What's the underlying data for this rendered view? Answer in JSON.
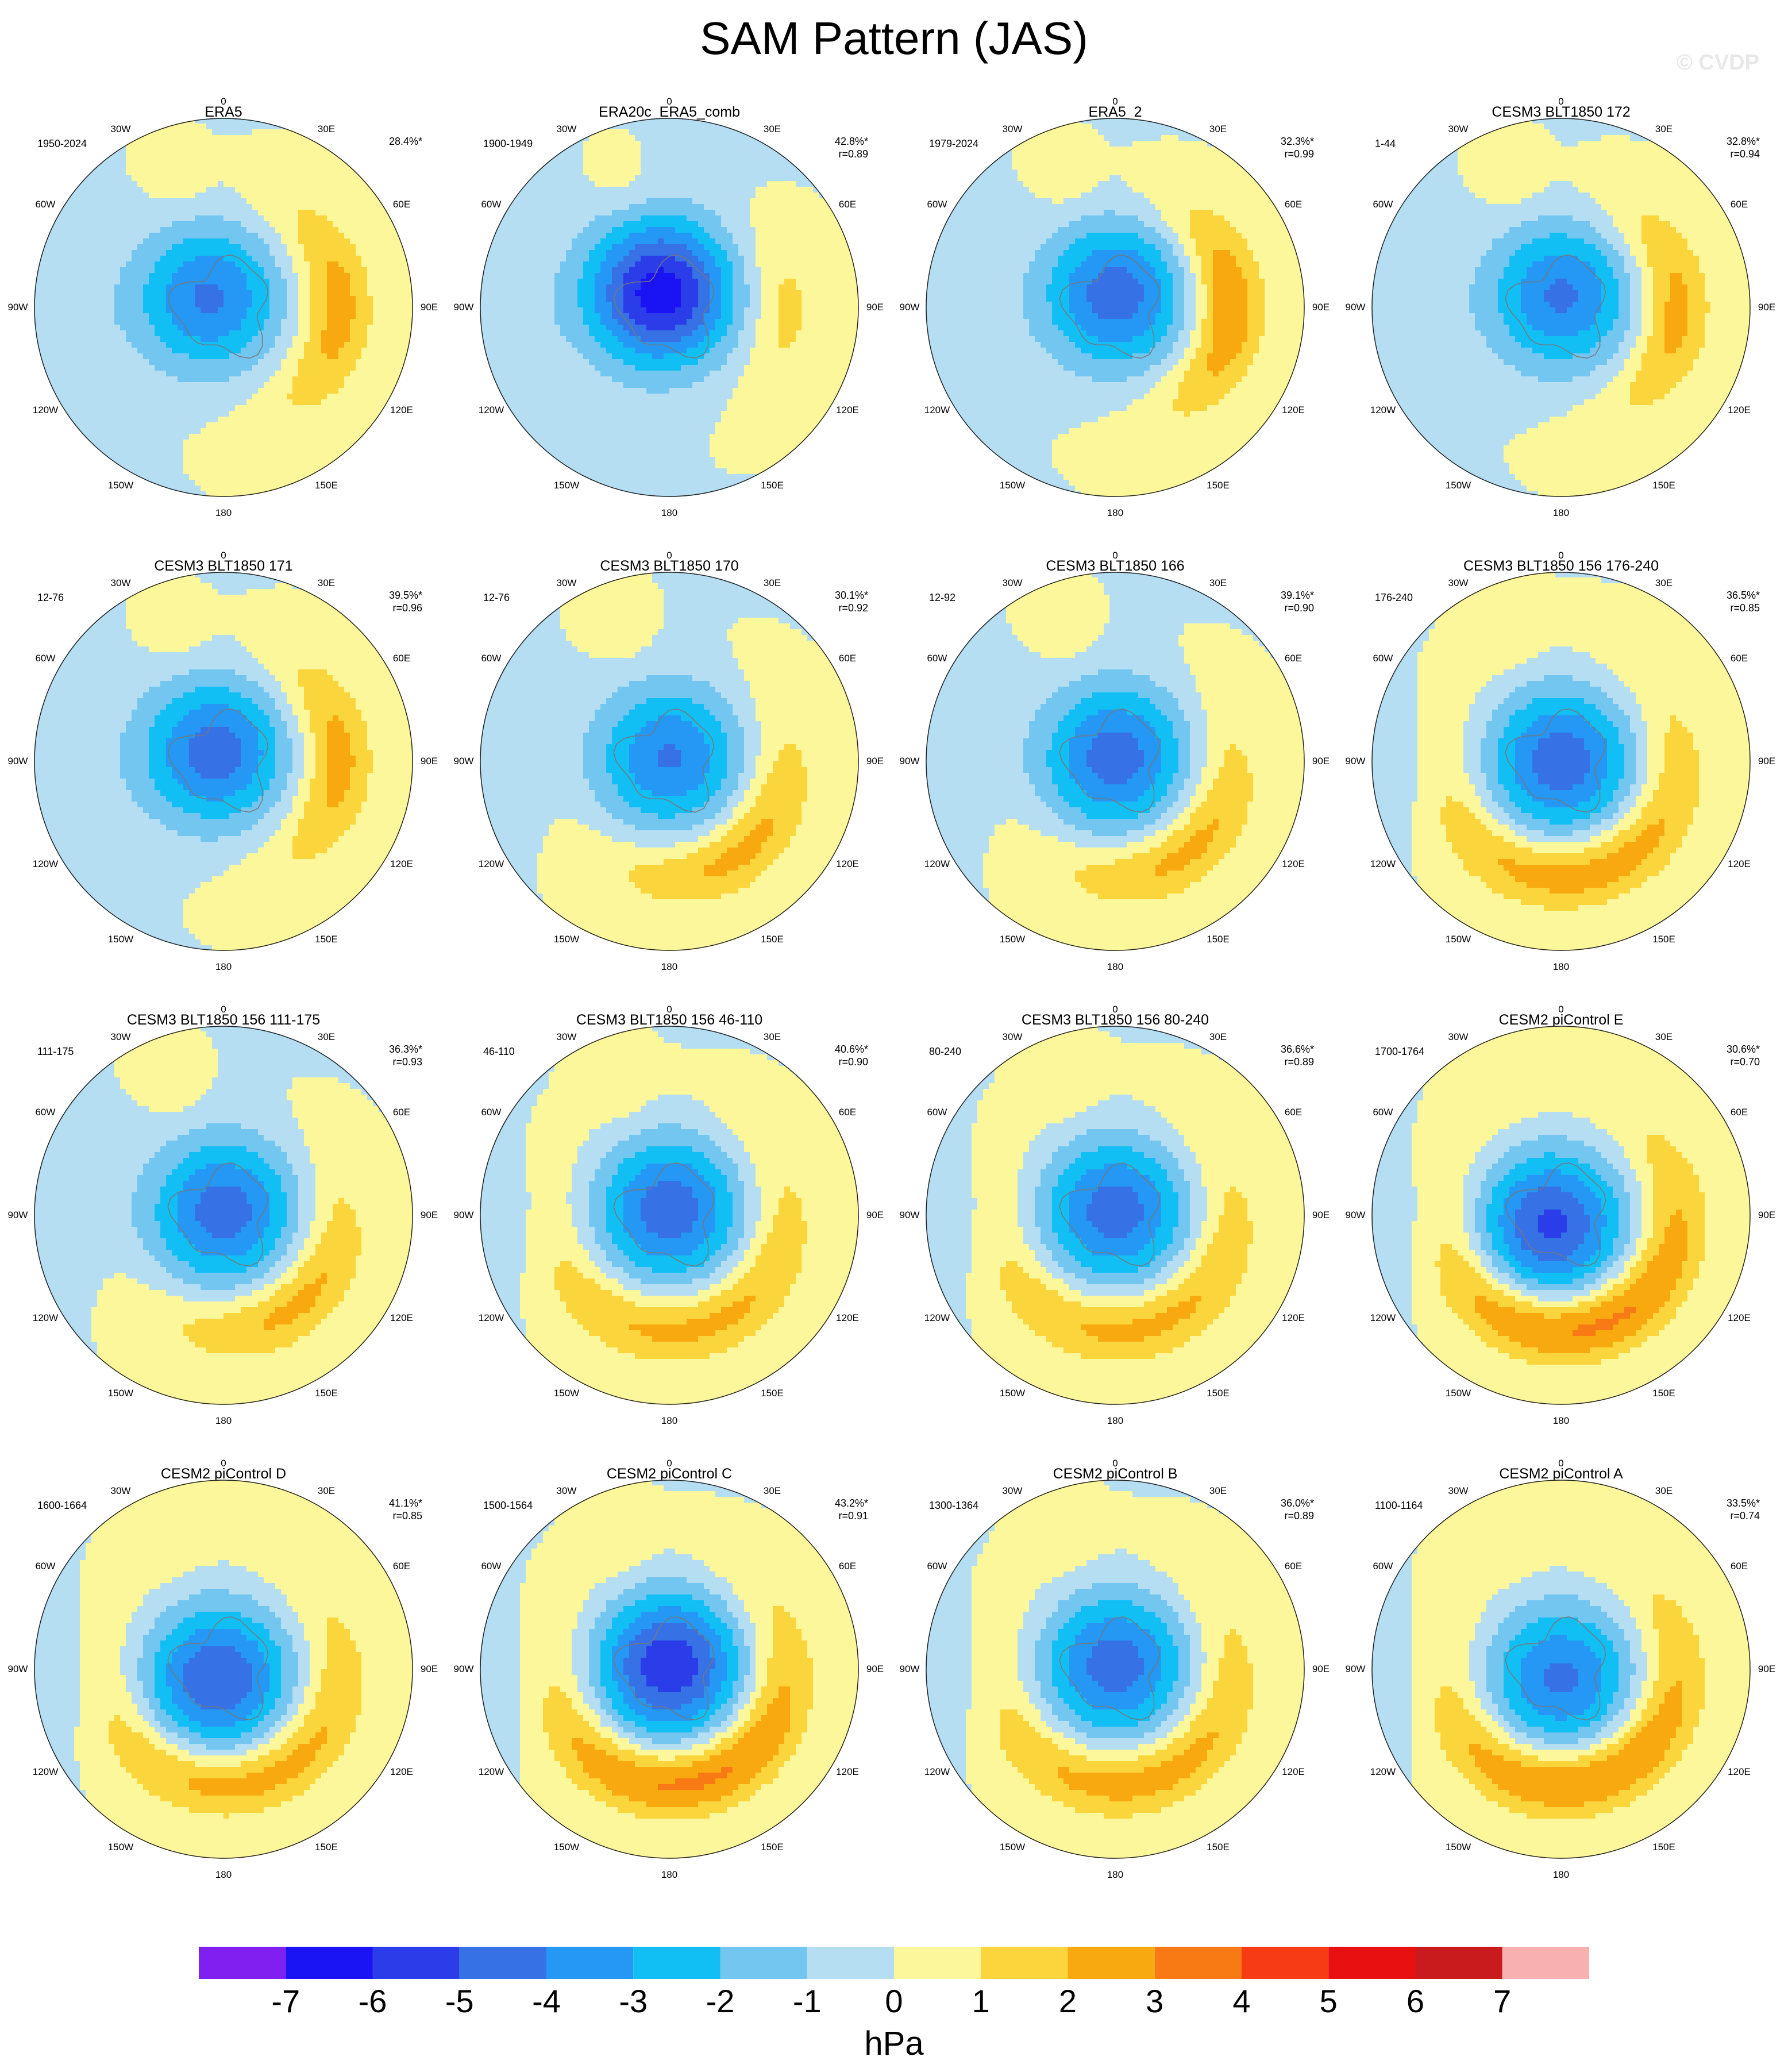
{
  "title": "SAM Pattern (JAS)",
  "watermark": "© CVDP",
  "longitude_labels": [
    "0",
    "30E",
    "60E",
    "90E",
    "120E",
    "150E",
    "180",
    "150W",
    "120W",
    "90W",
    "60W",
    "30W"
  ],
  "panels": [
    {
      "title": "ERA5",
      "period": "1950-2024",
      "pct": "28.4%*",
      "r": "",
      "pattern": {
        "lowA": -4.2,
        "highA": 2.6,
        "shiftX": -0.08,
        "shiftY": -0.05,
        "tilt": 0.0,
        "ring": "east"
      }
    },
    {
      "title": "ERA20c_ERA5_comb",
      "period": "1900-1949",
      "pct": "42.8%*",
      "r": "r=0.89",
      "pattern": {
        "lowA": -6.6,
        "highA": 1.5,
        "shiftX": -0.05,
        "shiftY": -0.08,
        "tilt": 0.0,
        "ring": "weak"
      }
    },
    {
      "title": "ERA5_2",
      "period": "1979-2024",
      "pct": "32.3%*",
      "r": "r=0.99",
      "pattern": {
        "lowA": -4.6,
        "highA": 3.1,
        "shiftX": 0.0,
        "shiftY": -0.07,
        "tilt": 0.0,
        "ring": "east"
      }
    },
    {
      "title": "CESM3 BLT1850 172",
      "period": "1-44",
      "pct": "32.8%*",
      "r": "r=0.94",
      "pattern": {
        "lowA": -4.2,
        "highA": 2.6,
        "shiftX": 0.0,
        "shiftY": -0.06,
        "tilt": 0.0,
        "ring": "east"
      }
    },
    {
      "title": "CESM3 BLT1850 171",
      "period": "12-76",
      "pct": "39.5%*",
      "r": "r=0.96",
      "pattern": {
        "lowA": -4.6,
        "highA": 2.6,
        "shiftX": -0.05,
        "shiftY": -0.05,
        "tilt": 0.0,
        "ring": "east"
      }
    },
    {
      "title": "CESM3 BLT1850 170",
      "period": "12-76",
      "pct": "30.1%*",
      "r": "r=0.92",
      "pattern": {
        "lowA": -4.1,
        "highA": 2.5,
        "shiftX": 0.0,
        "shiftY": -0.02,
        "tilt": 0.0,
        "ring": "southeast"
      }
    },
    {
      "title": "CESM3 BLT1850 166",
      "period": "12-92",
      "pct": "39.1%*",
      "r": "r=0.90",
      "pattern": {
        "lowA": -4.6,
        "highA": 2.5,
        "shiftX": 0.0,
        "shiftY": -0.02,
        "tilt": 0.0,
        "ring": "southeast"
      }
    },
    {
      "title": "CESM3 BLT1850 156 176-240",
      "period": "176-240",
      "pct": "36.5%*",
      "r": "r=0.85",
      "pattern": {
        "lowA": -4.7,
        "highA": 2.8,
        "shiftX": 0.0,
        "shiftY": 0.0,
        "tilt": 0.0,
        "ring": "south"
      }
    },
    {
      "title": "CESM3 BLT1850 156 111-175",
      "period": "111-175",
      "pct": "36.3%*",
      "r": "r=0.93",
      "pattern": {
        "lowA": -4.6,
        "highA": 2.5,
        "shiftX": 0.0,
        "shiftY": -0.02,
        "tilt": 0.0,
        "ring": "southeast"
      }
    },
    {
      "title": "CESM3 BLT1850 156 46-110",
      "period": "46-110",
      "pct": "40.6%*",
      "r": "r=0.90",
      "pattern": {
        "lowA": -4.7,
        "highA": 2.5,
        "shiftX": 0.0,
        "shiftY": -0.03,
        "tilt": 0.0,
        "ring": "south"
      }
    },
    {
      "title": "CESM3 BLT1850 156 80-240",
      "period": "80-240",
      "pct": "36.6%*",
      "r": "r=0.89",
      "pattern": {
        "lowA": -4.6,
        "highA": 2.5,
        "shiftX": 0.0,
        "shiftY": -0.02,
        "tilt": 0.0,
        "ring": "south"
      }
    },
    {
      "title": "CESM2 piControl E",
      "period": "1700-1764",
      "pct": "30.6%*",
      "r": "r=0.70",
      "pattern": {
        "lowA": -5.2,
        "highA": 3.6,
        "shiftX": -0.05,
        "shiftY": 0.05,
        "tilt": 0.0,
        "ring": "south"
      }
    },
    {
      "title": "CESM2 piControl D",
      "period": "1600-1664",
      "pct": "41.1%*",
      "r": "r=0.85",
      "pattern": {
        "lowA": -5.0,
        "highA": 2.8,
        "shiftX": -0.03,
        "shiftY": 0.05,
        "tilt": 0.0,
        "ring": "south"
      }
    },
    {
      "title": "CESM2 piControl C",
      "period": "1500-1564",
      "pct": "43.2%*",
      "r": "r=0.91",
      "pattern": {
        "lowA": -5.8,
        "highA": 3.5,
        "shiftX": 0.0,
        "shiftY": -0.02,
        "tilt": 0.0,
        "ring": "south"
      }
    },
    {
      "title": "CESM2 piControl B",
      "period": "1300-1364",
      "pct": "36.0%*",
      "r": "r=0.89",
      "pattern": {
        "lowA": -4.6,
        "highA": 2.7,
        "shiftX": 0.0,
        "shiftY": -0.02,
        "tilt": 0.0,
        "ring": "south"
      }
    },
    {
      "title": "CESM2 piControl A",
      "period": "1100-1164",
      "pct": "33.5%*",
      "r": "r=0.74",
      "pattern": {
        "lowA": -4.2,
        "highA": 3.4,
        "shiftX": 0.0,
        "shiftY": 0.05,
        "tilt": 0.0,
        "ring": "south"
      }
    }
  ],
  "colorbar": {
    "colors": [
      "#7f1ff0",
      "#1a14f5",
      "#2b3de8",
      "#3672e5",
      "#2598f5",
      "#12bff5",
      "#73c6f0",
      "#b5def3",
      "#fdf79c",
      "#fbd53c",
      "#f8a90f",
      "#f87a14",
      "#f73b14",
      "#e81010",
      "#c91a1e",
      "#f9b0b0"
    ],
    "ticks": [
      "-7",
      "-6",
      "-5",
      "-4",
      "-3",
      "-2",
      "-1",
      "0",
      "1",
      "2",
      "3",
      "4",
      "5",
      "6",
      "7"
    ],
    "unit": "hPa"
  }
}
